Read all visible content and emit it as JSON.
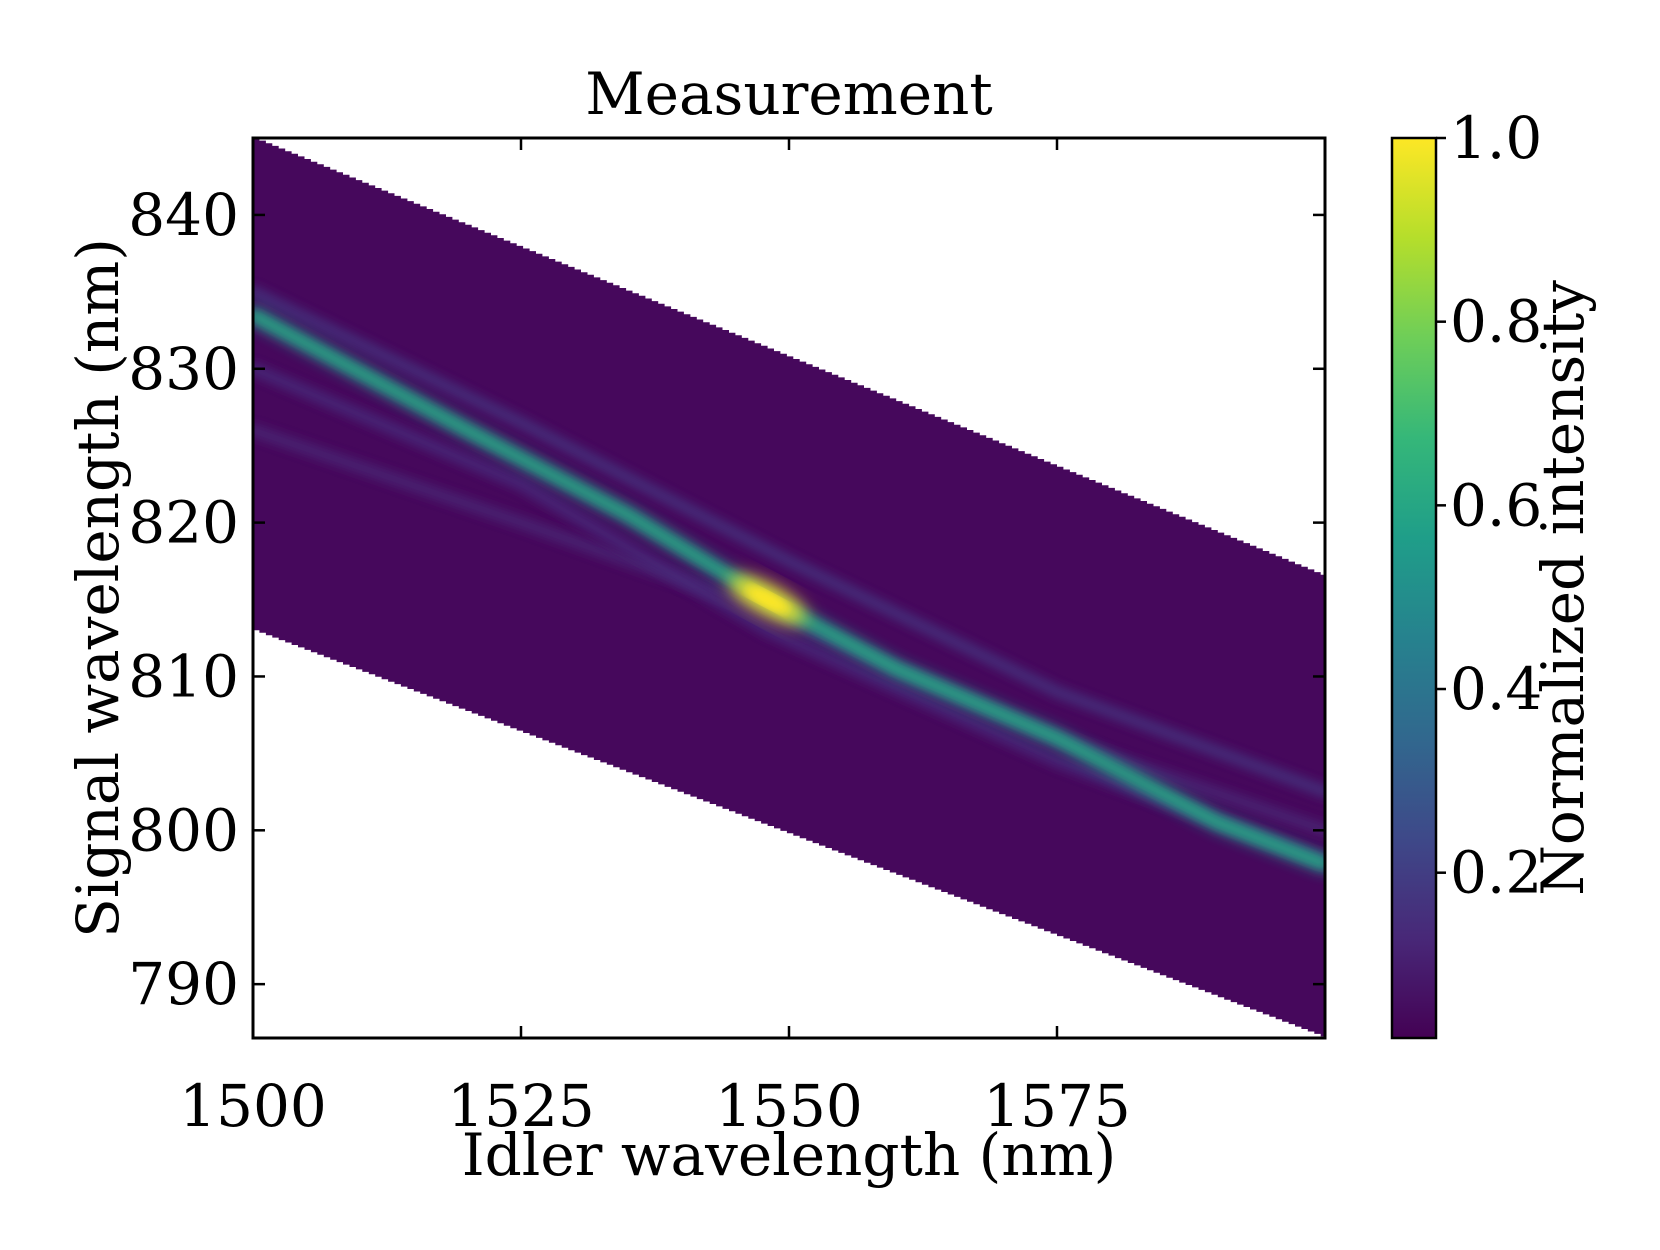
{
  "chart_data": {
    "type": "heatmap",
    "title": "Measurement",
    "xlabel": "Idler wavelength (nm)",
    "ylabel": "Signal wavelength (nm)",
    "xlim": [
      1500,
      1600
    ],
    "ylim": [
      786.5,
      845
    ],
    "x_ticks": [
      1500,
      1525,
      1550,
      1575
    ],
    "x_tick_labels": [
      "1500",
      "1525",
      "1550",
      "1575"
    ],
    "y_ticks": [
      790,
      800,
      810,
      820,
      830,
      840
    ],
    "y_tick_labels": [
      "790",
      "800",
      "810",
      "820",
      "830",
      "840"
    ],
    "data_region": {
      "upper_edge": [
        [
          1500,
          845.0
        ],
        [
          1600,
          816.5
        ]
      ],
      "lower_edge": [
        [
          1500,
          813.0
        ],
        [
          1600,
          786.5
        ]
      ]
    },
    "ridges": [
      {
        "name": "main",
        "points": [
          [
            1500,
            833.5
          ],
          [
            1520,
            826.0
          ],
          [
            1535,
            820.5
          ],
          [
            1548,
            815.0
          ],
          [
            1560,
            810.5
          ],
          [
            1575,
            806.0
          ],
          [
            1590,
            800.5
          ],
          [
            1600,
            797.8
          ]
        ],
        "peak_intensity": 0.55
      },
      {
        "name": "side-upper",
        "points": [
          [
            1500,
            835.0
          ],
          [
            1525,
            826.5
          ],
          [
            1550,
            817.5
          ],
          [
            1575,
            809.0
          ],
          [
            1600,
            802.5
          ]
        ],
        "peak_intensity": 0.16
      },
      {
        "name": "side-lower-1",
        "points": [
          [
            1500,
            830.0
          ],
          [
            1525,
            822.5
          ],
          [
            1548,
            813.0
          ],
          [
            1575,
            804.5
          ],
          [
            1600,
            798.0
          ]
        ],
        "peak_intensity": 0.14
      },
      {
        "name": "side-lower-2",
        "points": [
          [
            1500,
            826.0
          ],
          [
            1525,
            820.0
          ],
          [
            1545,
            815.0
          ],
          [
            1575,
            806.0
          ],
          [
            1600,
            800.0
          ]
        ],
        "peak_intensity": 0.12
      }
    ],
    "hotspot": {
      "x": 1548,
      "y": 815.0,
      "value": 1.0
    },
    "colorbar": {
      "label": "Normalized intensity",
      "range": [
        0.02,
        1.0
      ],
      "ticks": [
        0.2,
        0.4,
        0.6,
        0.8,
        1.0
      ],
      "tick_labels": [
        "0.2",
        "0.4",
        "0.6",
        "0.8",
        "1.0"
      ],
      "colormap": "viridis"
    },
    "colors": {
      "viridis": [
        "#440154",
        "#482878",
        "#3e4989",
        "#31688e",
        "#26828e",
        "#1f9e89",
        "#35b779",
        "#6ece58",
        "#b5de2b",
        "#fde725"
      ],
      "background_fill": "#46085c",
      "axes": "#000000"
    }
  }
}
